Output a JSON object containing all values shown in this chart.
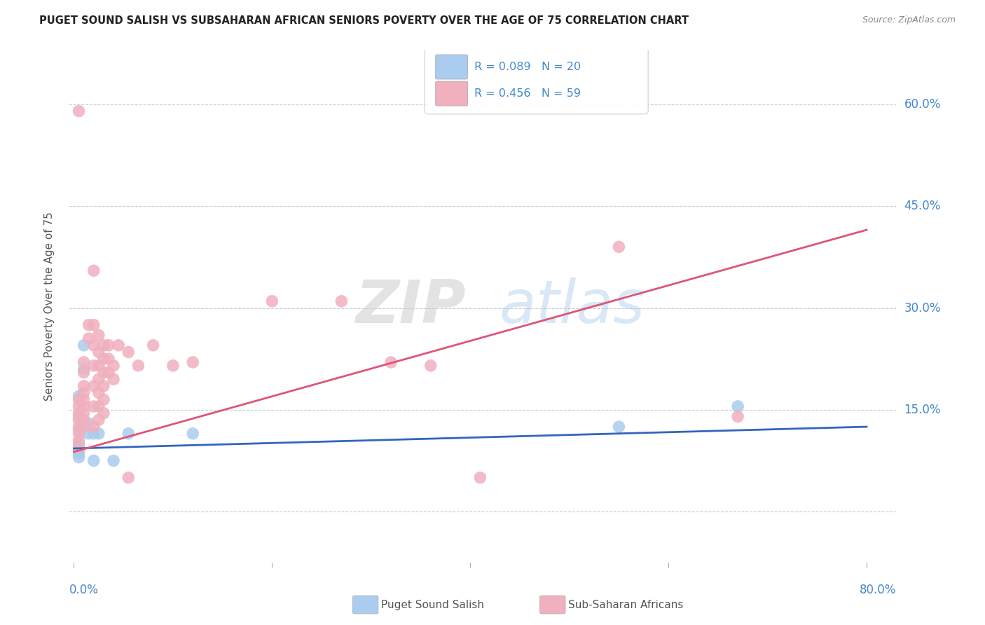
{
  "title": "PUGET SOUND SALISH VS SUBSAHARAN AFRICAN SENIORS POVERTY OVER THE AGE OF 75 CORRELATION CHART",
  "source": "Source: ZipAtlas.com",
  "ylabel": "Seniors Poverty Over the Age of 75",
  "background_color": "#ffffff",
  "grid_color": "#cccccc",
  "blue_color": "#aaccee",
  "pink_color": "#f0b0be",
  "blue_line_color": "#3366bb",
  "pink_line_color": "#dd5577",
  "title_color": "#222222",
  "axis_label_color": "#4488cc",
  "ytick_values": [
    0.0,
    0.15,
    0.3,
    0.45,
    0.6
  ],
  "xtick_values": [
    0.0,
    0.2,
    0.4,
    0.6,
    0.8
  ],
  "xlim": [
    -0.005,
    0.83
  ],
  "ylim": [
    -0.075,
    0.68
  ],
  "blue_scatter": [
    [
      0.005,
      0.17
    ],
    [
      0.005,
      0.14
    ],
    [
      0.005,
      0.12
    ],
    [
      0.005,
      0.1
    ],
    [
      0.005,
      0.09
    ],
    [
      0.005,
      0.085
    ],
    [
      0.005,
      0.08
    ],
    [
      0.01,
      0.245
    ],
    [
      0.01,
      0.21
    ],
    [
      0.01,
      0.13
    ],
    [
      0.015,
      0.13
    ],
    [
      0.015,
      0.115
    ],
    [
      0.02,
      0.115
    ],
    [
      0.02,
      0.075
    ],
    [
      0.025,
      0.115
    ],
    [
      0.04,
      0.075
    ],
    [
      0.055,
      0.115
    ],
    [
      0.12,
      0.115
    ],
    [
      0.55,
      0.125
    ],
    [
      0.67,
      0.155
    ]
  ],
  "pink_scatter": [
    [
      0.005,
      0.59
    ],
    [
      0.005,
      0.165
    ],
    [
      0.005,
      0.155
    ],
    [
      0.005,
      0.145
    ],
    [
      0.005,
      0.135
    ],
    [
      0.005,
      0.125
    ],
    [
      0.005,
      0.115
    ],
    [
      0.005,
      0.105
    ],
    [
      0.005,
      0.095
    ],
    [
      0.01,
      0.22
    ],
    [
      0.01,
      0.205
    ],
    [
      0.01,
      0.185
    ],
    [
      0.01,
      0.175
    ],
    [
      0.01,
      0.165
    ],
    [
      0.01,
      0.155
    ],
    [
      0.01,
      0.145
    ],
    [
      0.01,
      0.135
    ],
    [
      0.01,
      0.125
    ],
    [
      0.015,
      0.275
    ],
    [
      0.015,
      0.255
    ],
    [
      0.02,
      0.355
    ],
    [
      0.02,
      0.275
    ],
    [
      0.02,
      0.245
    ],
    [
      0.02,
      0.215
    ],
    [
      0.02,
      0.185
    ],
    [
      0.02,
      0.155
    ],
    [
      0.02,
      0.125
    ],
    [
      0.025,
      0.26
    ],
    [
      0.025,
      0.235
    ],
    [
      0.025,
      0.215
    ],
    [
      0.025,
      0.195
    ],
    [
      0.025,
      0.175
    ],
    [
      0.025,
      0.155
    ],
    [
      0.025,
      0.135
    ],
    [
      0.03,
      0.245
    ],
    [
      0.03,
      0.225
    ],
    [
      0.03,
      0.205
    ],
    [
      0.03,
      0.185
    ],
    [
      0.03,
      0.165
    ],
    [
      0.03,
      0.145
    ],
    [
      0.035,
      0.245
    ],
    [
      0.035,
      0.225
    ],
    [
      0.035,
      0.205
    ],
    [
      0.04,
      0.215
    ],
    [
      0.04,
      0.195
    ],
    [
      0.045,
      0.245
    ],
    [
      0.055,
      0.235
    ],
    [
      0.055,
      0.05
    ],
    [
      0.065,
      0.215
    ],
    [
      0.08,
      0.245
    ],
    [
      0.1,
      0.215
    ],
    [
      0.12,
      0.22
    ],
    [
      0.2,
      0.31
    ],
    [
      0.27,
      0.31
    ],
    [
      0.32,
      0.22
    ],
    [
      0.36,
      0.215
    ],
    [
      0.41,
      0.05
    ],
    [
      0.55,
      0.39
    ],
    [
      0.67,
      0.14
    ]
  ],
  "blue_trendline_x": [
    0.0,
    0.8
  ],
  "blue_trendline_y": [
    0.093,
    0.125
  ],
  "pink_trendline_x": [
    0.0,
    0.8
  ],
  "pink_trendline_y": [
    0.088,
    0.415
  ]
}
